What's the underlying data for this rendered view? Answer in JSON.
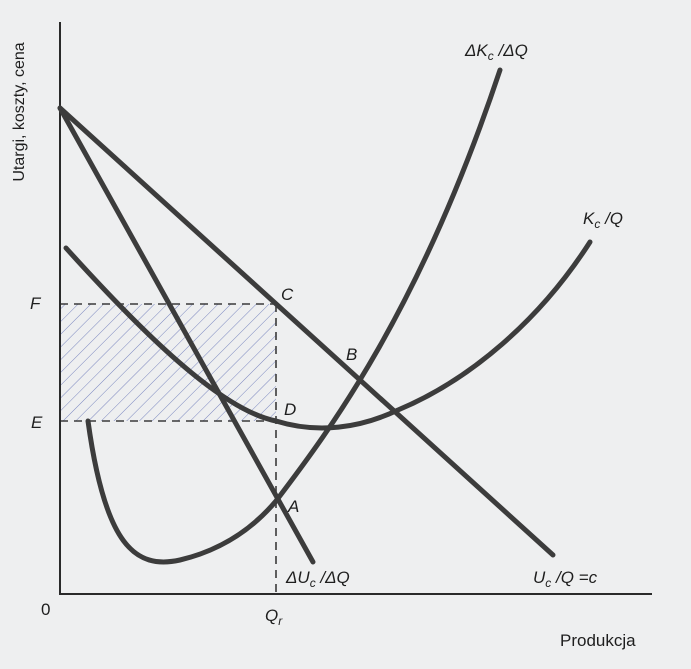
{
  "axes": {
    "y_label": "Utargi, koszty, cena",
    "x_label": "Produkcja",
    "origin_label": "0"
  },
  "levels": {
    "F": "F",
    "E": "E",
    "Qr_main": "Q",
    "Qr_sub": "r"
  },
  "points": {
    "A": "A",
    "B": "B",
    "C": "C",
    "D": "D"
  },
  "curves": {
    "marginal_cost": {
      "pre": "ΔK",
      "sub": "c",
      "post": " /ΔQ"
    },
    "average_cost": {
      "pre": "K",
      "sub": "c",
      "post": " /Q"
    },
    "marginal_revenue": {
      "pre": "ΔU",
      "sub": "c",
      "post": " /ΔQ"
    },
    "average_revenue": {
      "pre": "U",
      "sub": "c",
      "post": " /Q =c"
    }
  },
  "colors": {
    "background": "#eeeff0",
    "curve": "#3c3c3c",
    "axis": "#2a2a2a",
    "hatch": "#7b87c0"
  }
}
